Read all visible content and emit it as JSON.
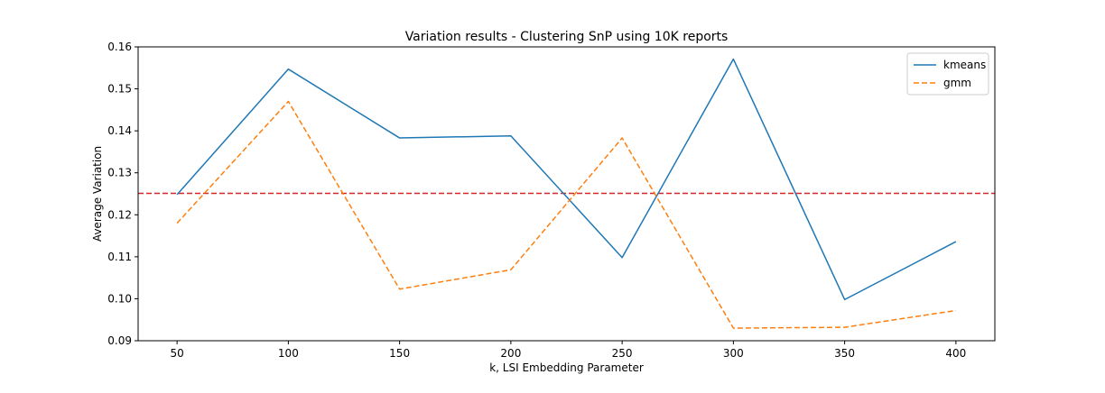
{
  "chart_data": {
    "type": "line",
    "title": "Variation results - Clustering SnP using 10K reports",
    "xlabel": "k, LSI Embedding Parameter",
    "ylabel": "Average Variation",
    "x": [
      50,
      100,
      150,
      200,
      250,
      300,
      350,
      400
    ],
    "xlim": [
      32.5,
      417.5
    ],
    "ylim": [
      0.09,
      0.16
    ],
    "xticks": [
      50,
      100,
      150,
      200,
      250,
      300,
      350,
      400
    ],
    "yticks": [
      0.09,
      0.1,
      0.11,
      0.12,
      0.13,
      0.14,
      0.15,
      0.16
    ],
    "ytick_labels": [
      "0.09",
      "0.10",
      "0.11",
      "0.12",
      "0.13",
      "0.14",
      "0.15",
      "0.16"
    ],
    "series": [
      {
        "name": "kmeans",
        "values": [
          0.1248,
          0.1547,
          0.1383,
          0.1388,
          0.1098,
          0.1571,
          0.0998,
          0.1136
        ],
        "color": "#1f77b4",
        "style": "solid"
      },
      {
        "name": "gmm",
        "values": [
          0.118,
          0.147,
          0.1023,
          0.1069,
          0.1383,
          0.093,
          0.0932,
          0.0972
        ],
        "color": "#ff7f0e",
        "style": "dashed"
      }
    ],
    "reference_line": {
      "y": 0.1251,
      "color": "#d62728",
      "style": "dashed"
    },
    "legend": {
      "placement": "top-right"
    },
    "grid": false
  }
}
